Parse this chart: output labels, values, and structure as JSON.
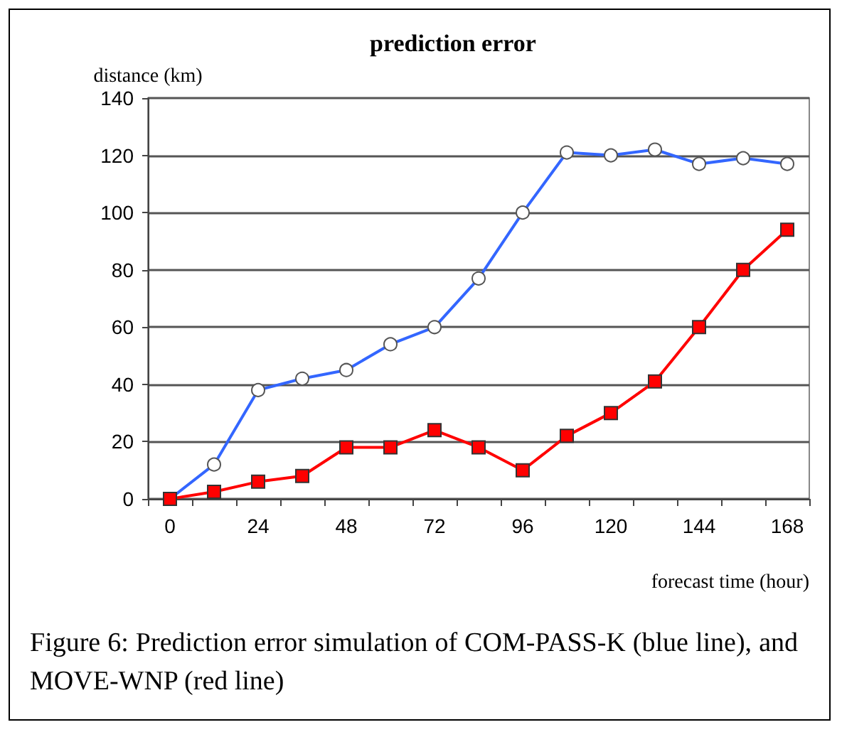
{
  "chart_data": {
    "type": "line",
    "title": "prediction error",
    "ylabel": "distance (km)",
    "xlabel": "forecast time (hour)",
    "categories": [
      "0",
      null,
      "24",
      null,
      "48",
      null,
      "72",
      null,
      "96",
      null,
      "120",
      null,
      "144",
      null,
      "168"
    ],
    "series": [
      {
        "color": "#3366ff",
        "marker": "circle",
        "values": [
          0,
          12,
          38,
          42,
          45,
          54,
          60,
          77,
          100,
          121,
          120,
          122,
          117,
          119,
          117
        ]
      },
      {
        "color": "#ff0000",
        "marker": "square",
        "values": [
          0,
          2.5,
          6,
          8,
          18,
          18,
          24,
          18,
          10,
          22,
          30,
          41,
          60,
          80,
          94
        ]
      }
    ],
    "ylim": [
      0,
      140
    ],
    "yticks": [
      0,
      20,
      40,
      60,
      80,
      100,
      120,
      140
    ],
    "grid": "y",
    "line_style": "solid",
    "annotations": [
      "Figure 6: Prediction error simulation of COM-PASS-K (blue line), and MOVE-WNP (red line)"
    ]
  }
}
